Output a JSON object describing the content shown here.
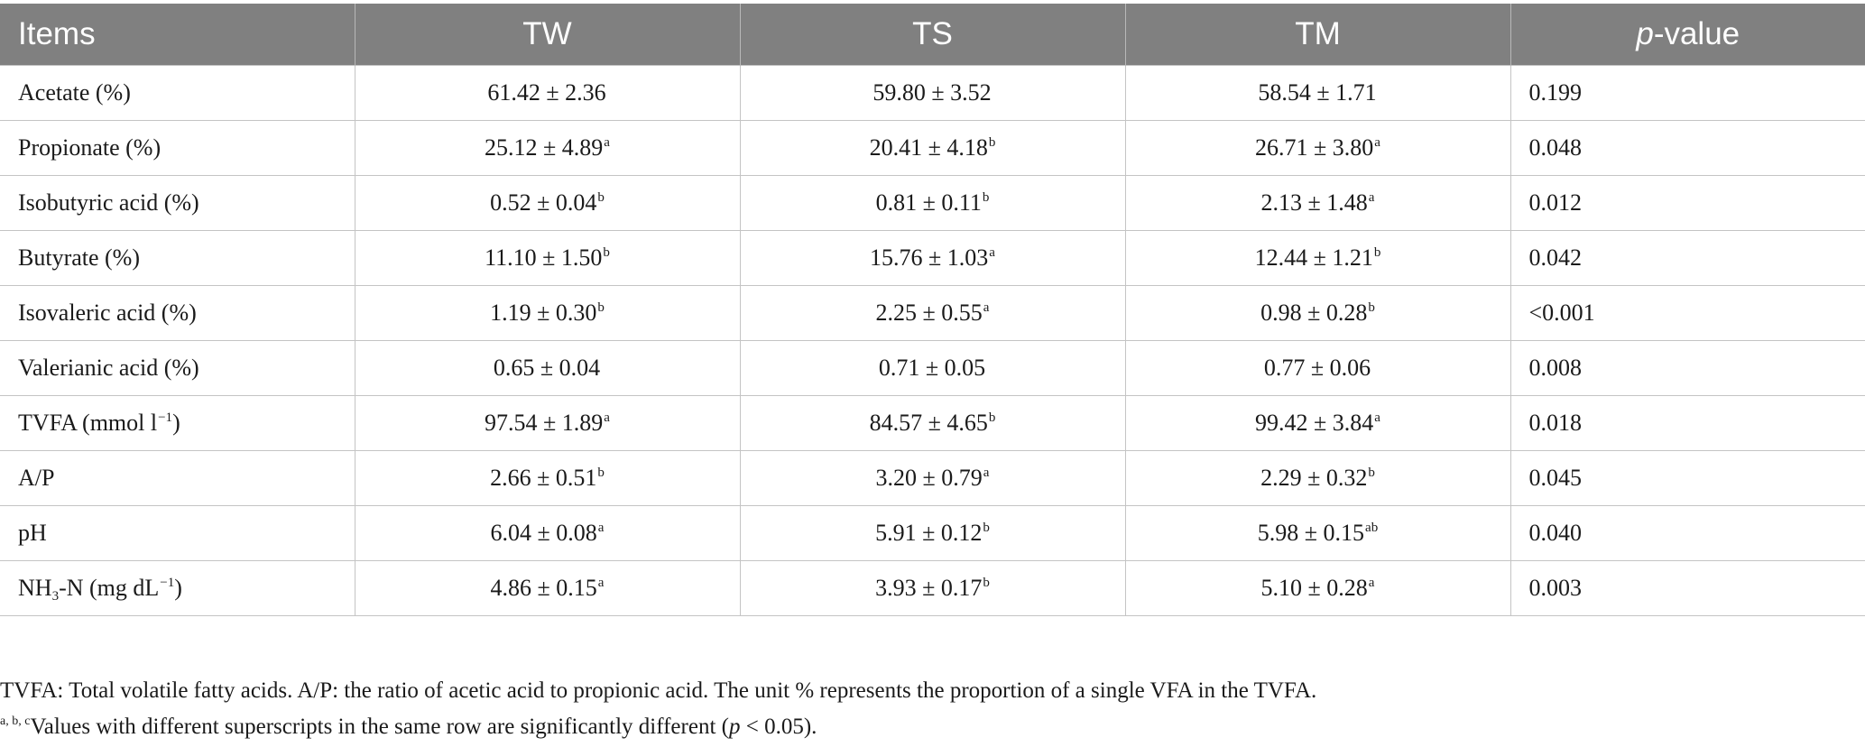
{
  "table": {
    "headers": {
      "items": "Items",
      "tw": "TW",
      "ts": "TS",
      "tm": "TM",
      "p_italic": "p",
      "p_rest": "-value"
    },
    "rows": [
      {
        "label": "Acetate (%)",
        "tw": "61.42 ± 2.36",
        "tw_sup": "",
        "ts": "59.80 ± 3.52",
        "ts_sup": "",
        "tm": "58.54 ± 1.71",
        "tm_sup": "",
        "p": "0.199"
      },
      {
        "label": "Propionate (%)",
        "tw": "25.12 ± 4.89",
        "tw_sup": "a",
        "ts": "20.41 ± 4.18",
        "ts_sup": "b",
        "tm": "26.71 ± 3.80",
        "tm_sup": "a",
        "p": "0.048"
      },
      {
        "label": "Isobutyric acid (%)",
        "tw": "0.52 ± 0.04",
        "tw_sup": "b",
        "ts": "0.81 ± 0.11",
        "ts_sup": "b",
        "tm": "2.13 ± 1.48",
        "tm_sup": "a",
        "p": "0.012"
      },
      {
        "label": "Butyrate (%)",
        "tw": "11.10 ± 1.50",
        "tw_sup": "b",
        "ts": "15.76 ± 1.03",
        "ts_sup": "a",
        "tm": "12.44 ± 1.21",
        "tm_sup": "b",
        "p": "0.042"
      },
      {
        "label": "Isovaleric acid (%)",
        "tw": "1.19 ± 0.30",
        "tw_sup": "b",
        "ts": "2.25 ± 0.55",
        "ts_sup": "a",
        "tm": "0.98 ± 0.28",
        "tm_sup": "b",
        "p": "<0.001"
      },
      {
        "label": "Valerianic acid (%)",
        "tw": "0.65 ± 0.04",
        "tw_sup": "",
        "ts": "0.71 ± 0.05",
        "ts_sup": "",
        "tm": "0.77 ± 0.06",
        "tm_sup": "",
        "p": "0.008"
      },
      {
        "label_pre": "TVFA (mmol l",
        "label_sup": "−1",
        "label_post": ")",
        "tw": "97.54 ± 1.89",
        "tw_sup": "a",
        "ts": "84.57 ± 4.65",
        "ts_sup": "b",
        "tm": "99.42 ± 3.84",
        "tm_sup": "a",
        "p": "0.018"
      },
      {
        "label": "A/P",
        "tw": "2.66 ± 0.51",
        "tw_sup": "b",
        "ts": "3.20 ± 0.79",
        "ts_sup": "a",
        "tm": "2.29 ± 0.32",
        "tm_sup": "b",
        "p": "0.045"
      },
      {
        "label": "pH",
        "tw": "6.04 ± 0.08",
        "tw_sup": "a",
        "ts": "5.91 ± 0.12",
        "ts_sup": "b",
        "tm": "5.98 ± 0.15",
        "tm_sup": "ab",
        "p": "0.040"
      },
      {
        "label_pre": "NH",
        "label_sub": "3",
        "label_mid": "-N (mg dL",
        "label_sup": "−1",
        "label_post": ")",
        "tw": "4.86 ± 0.15",
        "tw_sup": "a",
        "ts": "3.93 ± 0.17",
        "ts_sup": "b",
        "tm": "5.10 ± 0.28",
        "tm_sup": "a",
        "p": "0.003"
      }
    ]
  },
  "footnotes": {
    "line1": "TVFA: Total volatile fatty acids. A/P: the ratio of acetic acid to propionic acid. The unit % represents the proportion of a single VFA in the TVFA.",
    "line2_sup": "a, b, c",
    "line2_pre": "Values with different superscripts in the same row are significantly different (",
    "line2_italic": "p",
    "line2_post": " < 0.05)."
  },
  "colors": {
    "header_bg": "#808080",
    "header_text": "#ffffff",
    "grid": "#c4c4c4"
  }
}
